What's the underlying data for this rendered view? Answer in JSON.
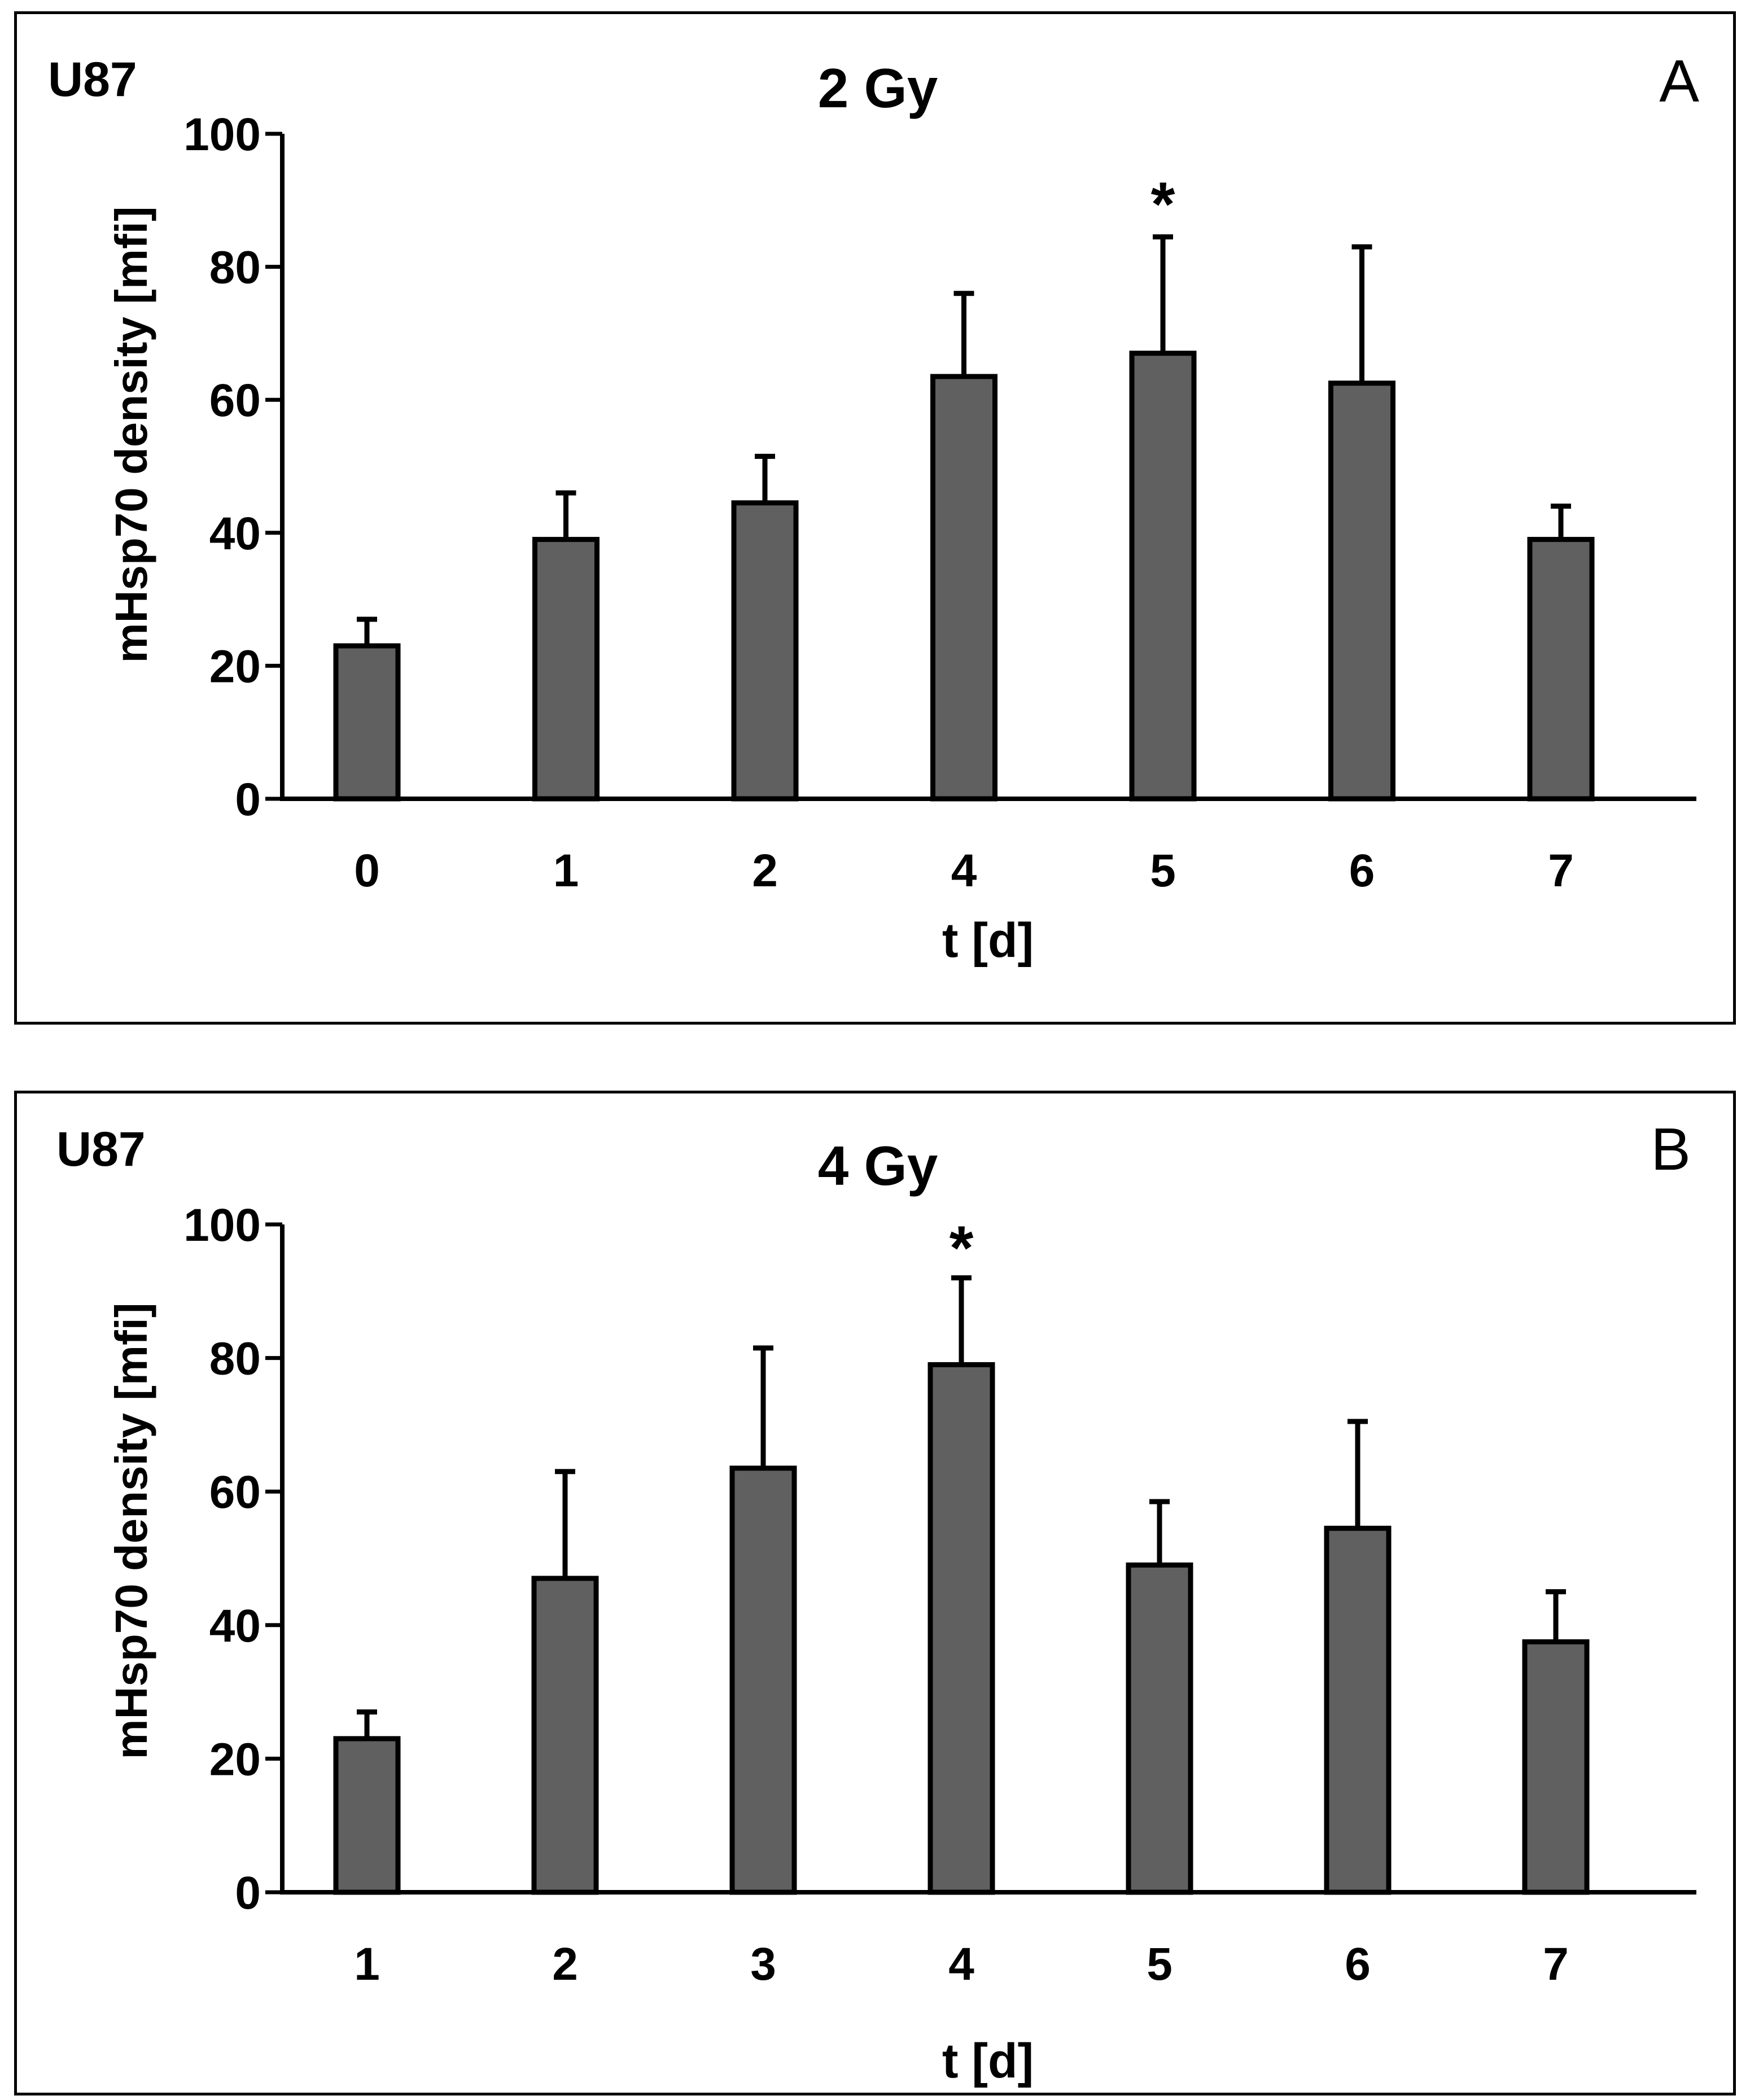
{
  "chart_data": [
    {
      "panel": "A",
      "type": "bar",
      "cell_line": "U87",
      "title": "2 Gy",
      "xlabel": "t [d]",
      "ylabel": "mHsp70 density [mfi]",
      "ylim": [
        0,
        100
      ],
      "yticks": [
        "0",
        "20",
        "40",
        "60",
        "80",
        "100"
      ],
      "categories": [
        "0",
        "1",
        "2",
        "4",
        "5",
        "6",
        "7"
      ],
      "values": [
        23,
        39,
        44.5,
        63.5,
        67,
        62.5,
        39
      ],
      "errors": [
        4,
        7,
        7,
        12.5,
        17.5,
        20.5,
        5
      ],
      "significance": [
        "",
        "",
        "",
        "",
        "*",
        "",
        ""
      ],
      "bar_color": "#606060"
    },
    {
      "panel": "B",
      "type": "bar",
      "cell_line": "U87",
      "title": "4 Gy",
      "xlabel": "t [d]",
      "ylabel": "mHsp70 density [mfi]",
      "ylim": [
        0,
        100
      ],
      "yticks": [
        "0",
        "20",
        "40",
        "60",
        "80",
        "100"
      ],
      "categories": [
        "1",
        "2",
        "3",
        "4",
        "5",
        "6",
        "7"
      ],
      "values": [
        23,
        47,
        63.5,
        79,
        49,
        54.5,
        37.5
      ],
      "errors": [
        4,
        16,
        18,
        13,
        9.5,
        16,
        7.5
      ],
      "significance": [
        "",
        "",
        "",
        "*",
        "",
        "",
        ""
      ],
      "bar_color": "#606060"
    }
  ]
}
